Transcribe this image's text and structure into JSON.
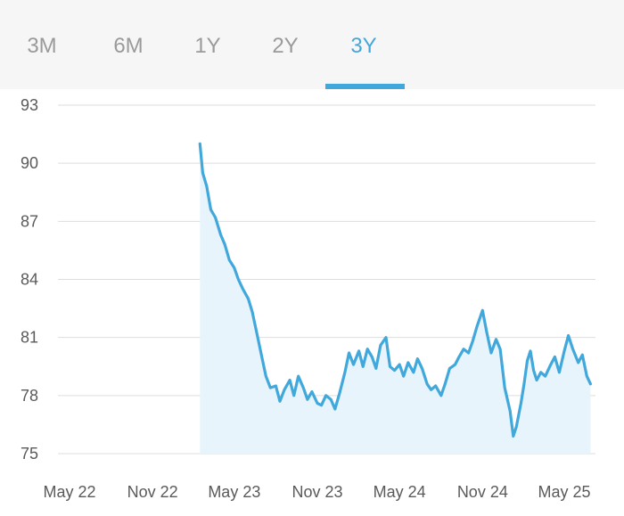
{
  "tabs": [
    {
      "label": "3M",
      "active": false
    },
    {
      "label": "6M",
      "active": false
    },
    {
      "label": "1Y",
      "active": false
    },
    {
      "label": "2Y",
      "active": false
    },
    {
      "label": "3Y",
      "active": true
    }
  ],
  "colors": {
    "accent": "#41a8dc",
    "fill": "#e8f4fb",
    "grid": "#dddddd",
    "tab_inactive": "#9a9a9a",
    "tab_bar_bg": "#f6f6f6"
  },
  "chart_data": {
    "type": "line",
    "title": "",
    "xlabel": "",
    "ylabel": "",
    "ylim": [
      75,
      93
    ],
    "y_ticks": [
      93,
      90,
      87,
      84,
      81,
      78,
      75
    ],
    "x_ticks": [
      {
        "label": "May 22",
        "date": "2022-05-01"
      },
      {
        "label": "Nov 22",
        "date": "2022-11-01"
      },
      {
        "label": "May 23",
        "date": "2023-05-01"
      },
      {
        "label": "Nov 23",
        "date": "2023-11-01"
      },
      {
        "label": "May 24",
        "date": "2024-05-01"
      },
      {
        "label": "Nov 24",
        "date": "2024-11-01"
      },
      {
        "label": "May 25",
        "date": "2025-05-01"
      }
    ],
    "grid": true,
    "legend": "none",
    "area_fill": true,
    "series": [
      {
        "points": [
          [
            "2023-02-14",
            91.0
          ],
          [
            "2023-02-20",
            89.5
          ],
          [
            "2023-03-01",
            88.8
          ],
          [
            "2023-03-10",
            87.6
          ],
          [
            "2023-03-20",
            87.2
          ],
          [
            "2023-04-01",
            86.3
          ],
          [
            "2023-04-10",
            85.8
          ],
          [
            "2023-04-20",
            85.0
          ],
          [
            "2023-05-01",
            84.6
          ],
          [
            "2023-05-10",
            84.0
          ],
          [
            "2023-05-20",
            83.5
          ],
          [
            "2023-06-01",
            83.0
          ],
          [
            "2023-06-10",
            82.3
          ],
          [
            "2023-06-20",
            81.2
          ],
          [
            "2023-07-01",
            80.0
          ],
          [
            "2023-07-10",
            79.0
          ],
          [
            "2023-07-20",
            78.4
          ],
          [
            "2023-08-01",
            78.5
          ],
          [
            "2023-08-10",
            77.7
          ],
          [
            "2023-08-20",
            78.3
          ],
          [
            "2023-09-01",
            78.8
          ],
          [
            "2023-09-10",
            78.0
          ],
          [
            "2023-09-20",
            79.0
          ],
          [
            "2023-10-01",
            78.4
          ],
          [
            "2023-10-10",
            77.8
          ],
          [
            "2023-10-20",
            78.2
          ],
          [
            "2023-11-01",
            77.6
          ],
          [
            "2023-11-10",
            77.5
          ],
          [
            "2023-11-20",
            78.0
          ],
          [
            "2023-12-01",
            77.8
          ],
          [
            "2023-12-10",
            77.3
          ],
          [
            "2023-12-20",
            78.1
          ],
          [
            "2024-01-01",
            79.2
          ],
          [
            "2024-01-10",
            80.2
          ],
          [
            "2024-01-20",
            79.6
          ],
          [
            "2024-02-01",
            80.3
          ],
          [
            "2024-02-10",
            79.5
          ],
          [
            "2024-02-20",
            80.4
          ],
          [
            "2024-03-01",
            80.0
          ],
          [
            "2024-03-10",
            79.4
          ],
          [
            "2024-03-20",
            80.6
          ],
          [
            "2024-04-01",
            81.0
          ],
          [
            "2024-04-10",
            79.5
          ],
          [
            "2024-04-20",
            79.3
          ],
          [
            "2024-05-01",
            79.6
          ],
          [
            "2024-05-10",
            79.0
          ],
          [
            "2024-05-20",
            79.7
          ],
          [
            "2024-06-01",
            79.2
          ],
          [
            "2024-06-10",
            79.9
          ],
          [
            "2024-06-20",
            79.4
          ],
          [
            "2024-07-01",
            78.6
          ],
          [
            "2024-07-10",
            78.3
          ],
          [
            "2024-07-20",
            78.5
          ],
          [
            "2024-08-01",
            78.0
          ],
          [
            "2024-08-10",
            78.6
          ],
          [
            "2024-08-20",
            79.4
          ],
          [
            "2024-09-01",
            79.6
          ],
          [
            "2024-09-10",
            80.0
          ],
          [
            "2024-09-20",
            80.4
          ],
          [
            "2024-10-01",
            80.2
          ],
          [
            "2024-10-10",
            80.8
          ],
          [
            "2024-10-20",
            81.6
          ],
          [
            "2024-11-01",
            82.4
          ],
          [
            "2024-11-10",
            81.3
          ],
          [
            "2024-11-20",
            80.2
          ],
          [
            "2024-12-01",
            80.9
          ],
          [
            "2024-12-10",
            80.4
          ],
          [
            "2024-12-20",
            78.4
          ],
          [
            "2025-01-01",
            77.2
          ],
          [
            "2025-01-08",
            75.9
          ],
          [
            "2025-01-15",
            76.4
          ],
          [
            "2025-01-25",
            77.6
          ],
          [
            "2025-02-01",
            78.6
          ],
          [
            "2025-02-08",
            79.8
          ],
          [
            "2025-02-15",
            80.3
          ],
          [
            "2025-02-22",
            79.3
          ],
          [
            "2025-03-01",
            78.8
          ],
          [
            "2025-03-10",
            79.2
          ],
          [
            "2025-03-20",
            79.0
          ],
          [
            "2025-04-01",
            79.6
          ],
          [
            "2025-04-10",
            80.0
          ],
          [
            "2025-04-20",
            79.2
          ],
          [
            "2025-05-01",
            80.3
          ],
          [
            "2025-05-10",
            81.1
          ],
          [
            "2025-05-20",
            80.4
          ],
          [
            "2025-06-01",
            79.7
          ],
          [
            "2025-06-10",
            80.1
          ],
          [
            "2025-06-20",
            79.0
          ],
          [
            "2025-06-28",
            78.6
          ]
        ]
      }
    ]
  }
}
